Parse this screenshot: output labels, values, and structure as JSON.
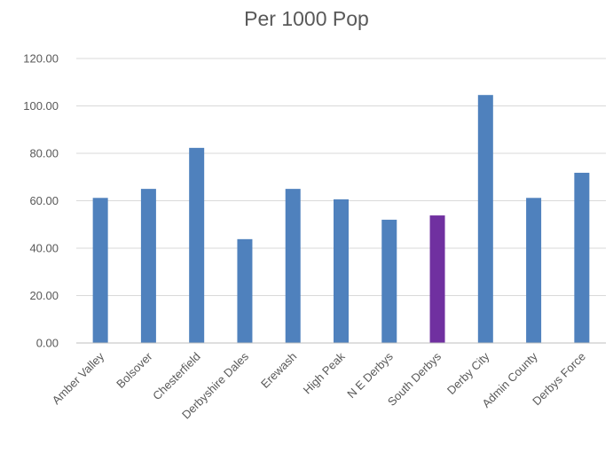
{
  "chart_data": {
    "type": "bar",
    "title": "Per 1000 Pop",
    "xlabel": "",
    "ylabel": "",
    "ylim": [
      0,
      120
    ],
    "yticks": [
      "0.00",
      "20.00",
      "40.00",
      "60.00",
      "80.00",
      "100.00",
      "120.00"
    ],
    "grid": true,
    "legend": "none",
    "categories": [
      "Amber Valley",
      "Bolsover",
      "Chesterfield",
      "Derbyshire Dales",
      "Erewash",
      "High Peak",
      "N E Derbys",
      "South Derbys",
      "Derby City",
      "Admin County",
      "Derbys Force"
    ],
    "values": [
      61.2,
      65.0,
      82.3,
      43.8,
      65.0,
      60.6,
      52.0,
      53.8,
      104.6,
      61.2,
      71.8
    ],
    "bar_color": "#4f81bd",
    "highlight_color": "#7030a0",
    "highlight_category": "South Derbys"
  }
}
